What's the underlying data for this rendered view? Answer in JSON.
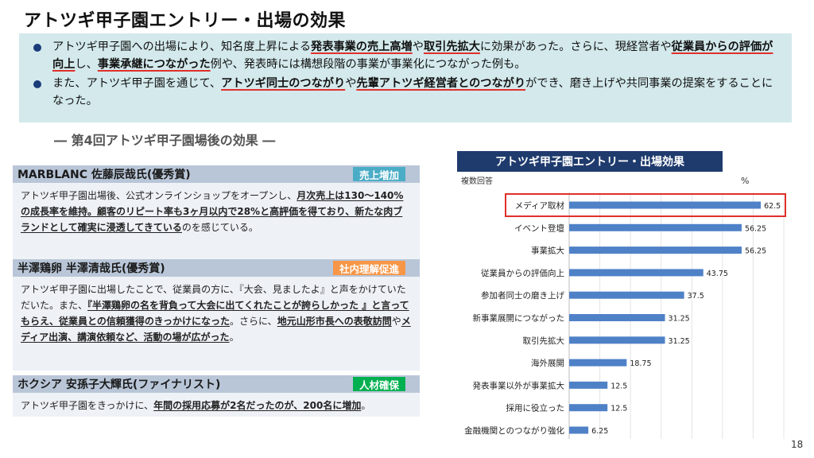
{
  "title": "アトツギ甲子園エントリー・出場の効果",
  "summary": {
    "b1": {
      "t1": "アトツギ甲子園への出場により、知名度上昇による",
      "h1": "発表事業の売上高増",
      "t2": "や",
      "h2": "取引先拡大",
      "t3": "に効果があった。さらに、現経営者や",
      "h3": "従業員からの評価が向上",
      "t4": "し、",
      "h4": "事業承継につながった",
      "t5": "例や、発表時には構想段階の事業が事業化につながった例も。"
    },
    "b2": {
      "t1": "また、アトツギ甲子園を通じて、",
      "h1": "アトツギ同士のつながり",
      "t2": "や",
      "h2": "先輩アトツギ経営者とのつながり",
      "t3": "ができ、磨き上げや共同事業の提案をすることになった。"
    }
  },
  "section_heading": "― 第4回アトツギ甲子園場後の効果 ―",
  "cards": [
    {
      "name": "MARBLANC 佐藤辰哉氏(優秀賞)",
      "tag": "売上増加",
      "tag_color": "#4bacc6",
      "p1": "アトツギ甲子園出場後、公式オンラインショップをオープンし、",
      "u1": "月次売上は130～140%の成長率を維持。顧客のリピート率も3ヶ月以内で28%と高評価を得ており、新たな肉ブランドとして確実に浸透してきている",
      "p2": "のを感じている。"
    },
    {
      "name": "半澤鶏卵 半澤清哉氏(優秀賞)",
      "tag": "社内理解促進",
      "tag_color": "#f79646",
      "p1": "アトツギ甲子園に出場したことで、従業員の方に、『大会、見ましたよ』と声をかけていただいた。また、",
      "u1": "『半澤鶏卵の名を背負って大会に出てくれたことが誇らしかった 』と言ってもらえ、従業員との信頼獲得のきっかけになった",
      "p2": "。さらに、",
      "u2": "地元山形市長への表敬訪問",
      "p3": "や",
      "u3": "メディア出演、講演依頼など、活動の場が広がった",
      "p4": "。"
    },
    {
      "name": "ホクシア 安孫子大輝氏(ファイナリスト)",
      "tag": "人材確保",
      "tag_color": "#00b050",
      "p1": "アトツギ甲子園をきっかけに、",
      "u1": "年間の採用応募が2名だったのが、200名に増加",
      "p2": "。"
    }
  ],
  "chart_data": {
    "type": "bar",
    "orientation": "horizontal",
    "title": "アトツギ甲子園エントリー・出場効果",
    "subtitle": "複数回答",
    "unit": "%",
    "categories": [
      "メディア取材",
      "イベント登壇",
      "事業拡大",
      "従業員からの評価向上",
      "参加者同士の磨き上げ",
      "新事業展開につながった",
      "取引先拡大",
      "海外展開",
      "発表事業以外が事業拡大",
      "採用に役立った",
      "金融機関とのつながり強化"
    ],
    "values": [
      62.5,
      56.25,
      56.25,
      43.75,
      37.5,
      31.25,
      31.25,
      18.75,
      12.5,
      12.5,
      6.25
    ],
    "value_labels": [
      "62.5",
      "56.25",
      "56.25",
      "43.75",
      "37.5",
      "31.25",
      "31.25",
      "18.75",
      "12.5",
      "12.5",
      "6.25"
    ],
    "xlim": [
      0,
      70
    ],
    "grid": true,
    "highlight_index": 0,
    "bar_color": "#4f81c7",
    "highlight_color": "#e0302a"
  },
  "page_number": "18"
}
